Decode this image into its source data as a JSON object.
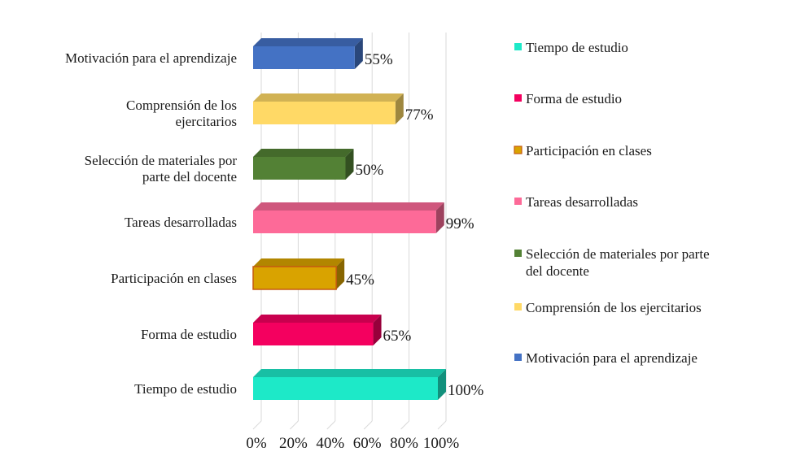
{
  "chart_data": {
    "type": "bar",
    "orientation": "horizontal",
    "style": "3d",
    "categories": [
      "Tiempo de estudio",
      "Forma de estudio",
      "Participación en clases",
      "Tareas desarrolladas",
      "Selección de materiales por parte del docente",
      "Comprensión de los ejercitarios",
      "Motivación para el aprendizaje"
    ],
    "category_display": [
      [
        "Tiempo de estudio"
      ],
      [
        "Forma de estudio"
      ],
      [
        "Participación en clases"
      ],
      [
        "Tareas desarrolladas"
      ],
      [
        "Selección de materiales por",
        "parte del docente"
      ],
      [
        "Comprensión de los",
        "ejercitarios"
      ],
      [
        "Motivación para el aprendizaje"
      ]
    ],
    "values": [
      100,
      65,
      45,
      99,
      50,
      77,
      55
    ],
    "data_labels": [
      "100%",
      "65%",
      "45%",
      "99%",
      "50%",
      "77%",
      "55%"
    ],
    "colors": [
      "#1de9c8",
      "#f4005f",
      "#d9a300",
      "#fd6a98",
      "#538135",
      "#ffd966",
      "#4472c4"
    ],
    "xlim": [
      0,
      100
    ],
    "x_ticks": [
      "0%",
      "20%",
      "40%",
      "60%",
      "80%",
      "100%"
    ],
    "grid": true,
    "legend_position": "right",
    "legend": [
      [
        "Tiempo de estudio"
      ],
      [
        "Forma de estudio"
      ],
      [
        "Participación en clases"
      ],
      [
        "Tareas desarrolladas"
      ],
      [
        "Selección de materiales por parte",
        "del docente"
      ],
      [
        "Comprensión de los ejercitarios"
      ],
      [
        "Motivación para el aprendizaje"
      ]
    ]
  }
}
